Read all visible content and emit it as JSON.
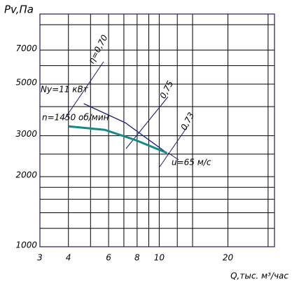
{
  "chart_data": {
    "type": "line",
    "log_x": true,
    "log_y": true,
    "y_label": "Pv,Па",
    "x_label": "Q,тыс. м³/час",
    "xlim": [
      3,
      32
    ],
    "xticks": [
      3,
      4,
      6,
      8,
      10,
      20
    ],
    "x_minor_grid": [
      5,
      7,
      9,
      12,
      14,
      30
    ],
    "ylim": [
      1000,
      10000
    ],
    "yticks": [
      1000,
      2000,
      3000,
      5000,
      7000
    ],
    "y_minor_grid": [
      1200,
      1400,
      1600,
      1800,
      2500,
      4000,
      6000,
      9000
    ],
    "grid": true,
    "series": [
      {
        "name": "Ny=11 кВт",
        "color": "#1a237e",
        "x": [
          4.67,
          7.1,
          10.8
        ],
        "values": [
          4120,
          3410,
          2530
        ]
      },
      {
        "name": "n=1450 об/мин",
        "color": "#138a8a",
        "x": [
          4,
          5.77,
          7.9,
          10.8
        ],
        "values": [
          3290,
          3180,
          2870,
          2530
        ]
      }
    ],
    "annotations": [
      "η=0,70",
      "0,75",
      "0,73",
      "u=65 м/с"
    ]
  }
}
